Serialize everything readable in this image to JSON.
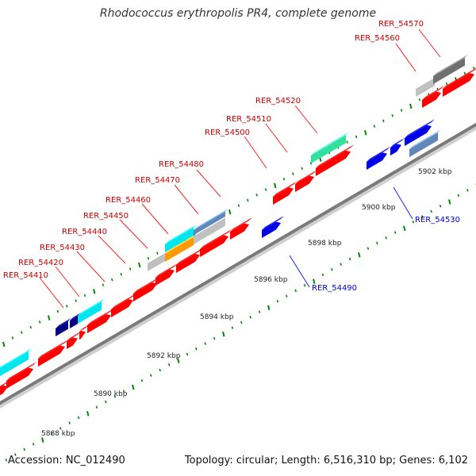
{
  "title": "Rhodococcus erythropolis PR4, complete genome",
  "footer": {
    "accession": "Accession: NC_012490",
    "summary": "Topology: circular; Length: 6,516,310 bp; Genes: 6,102"
  },
  "colors": {
    "red_gene": "#ff0000",
    "blue_gene": "#0000e6",
    "cyan_gene": "#00e5ee",
    "green_gene": "#33e0a0",
    "gray_gene": "#c0c0c0",
    "darkgray_gene": "#707070",
    "steel_gene": "#5f87b8",
    "orange_gene": "#ff9900",
    "navy_gene": "#000080",
    "label_forward": "#cc0000",
    "label_reverse": "#0000cc",
    "tick": "#008800"
  },
  "ruler_labels": [
    "5888 kbp",
    "5890 kbp",
    "5892 kbp",
    "5894 kbp",
    "5896 kbp",
    "5898 kbp",
    "5900 kbp",
    "5902 kbp"
  ],
  "forward_labels": [
    "RER_54410",
    "RER_54420",
    "RER_54430",
    "RER_54440",
    "RER_54450",
    "RER_54460",
    "RER_54470",
    "RER_54480",
    "RER_54500",
    "RER_54510",
    "RER_54520",
    "RER_54560",
    "RER_54570"
  ],
  "reverse_labels": [
    "RER_54490",
    "RER_54530"
  ]
}
